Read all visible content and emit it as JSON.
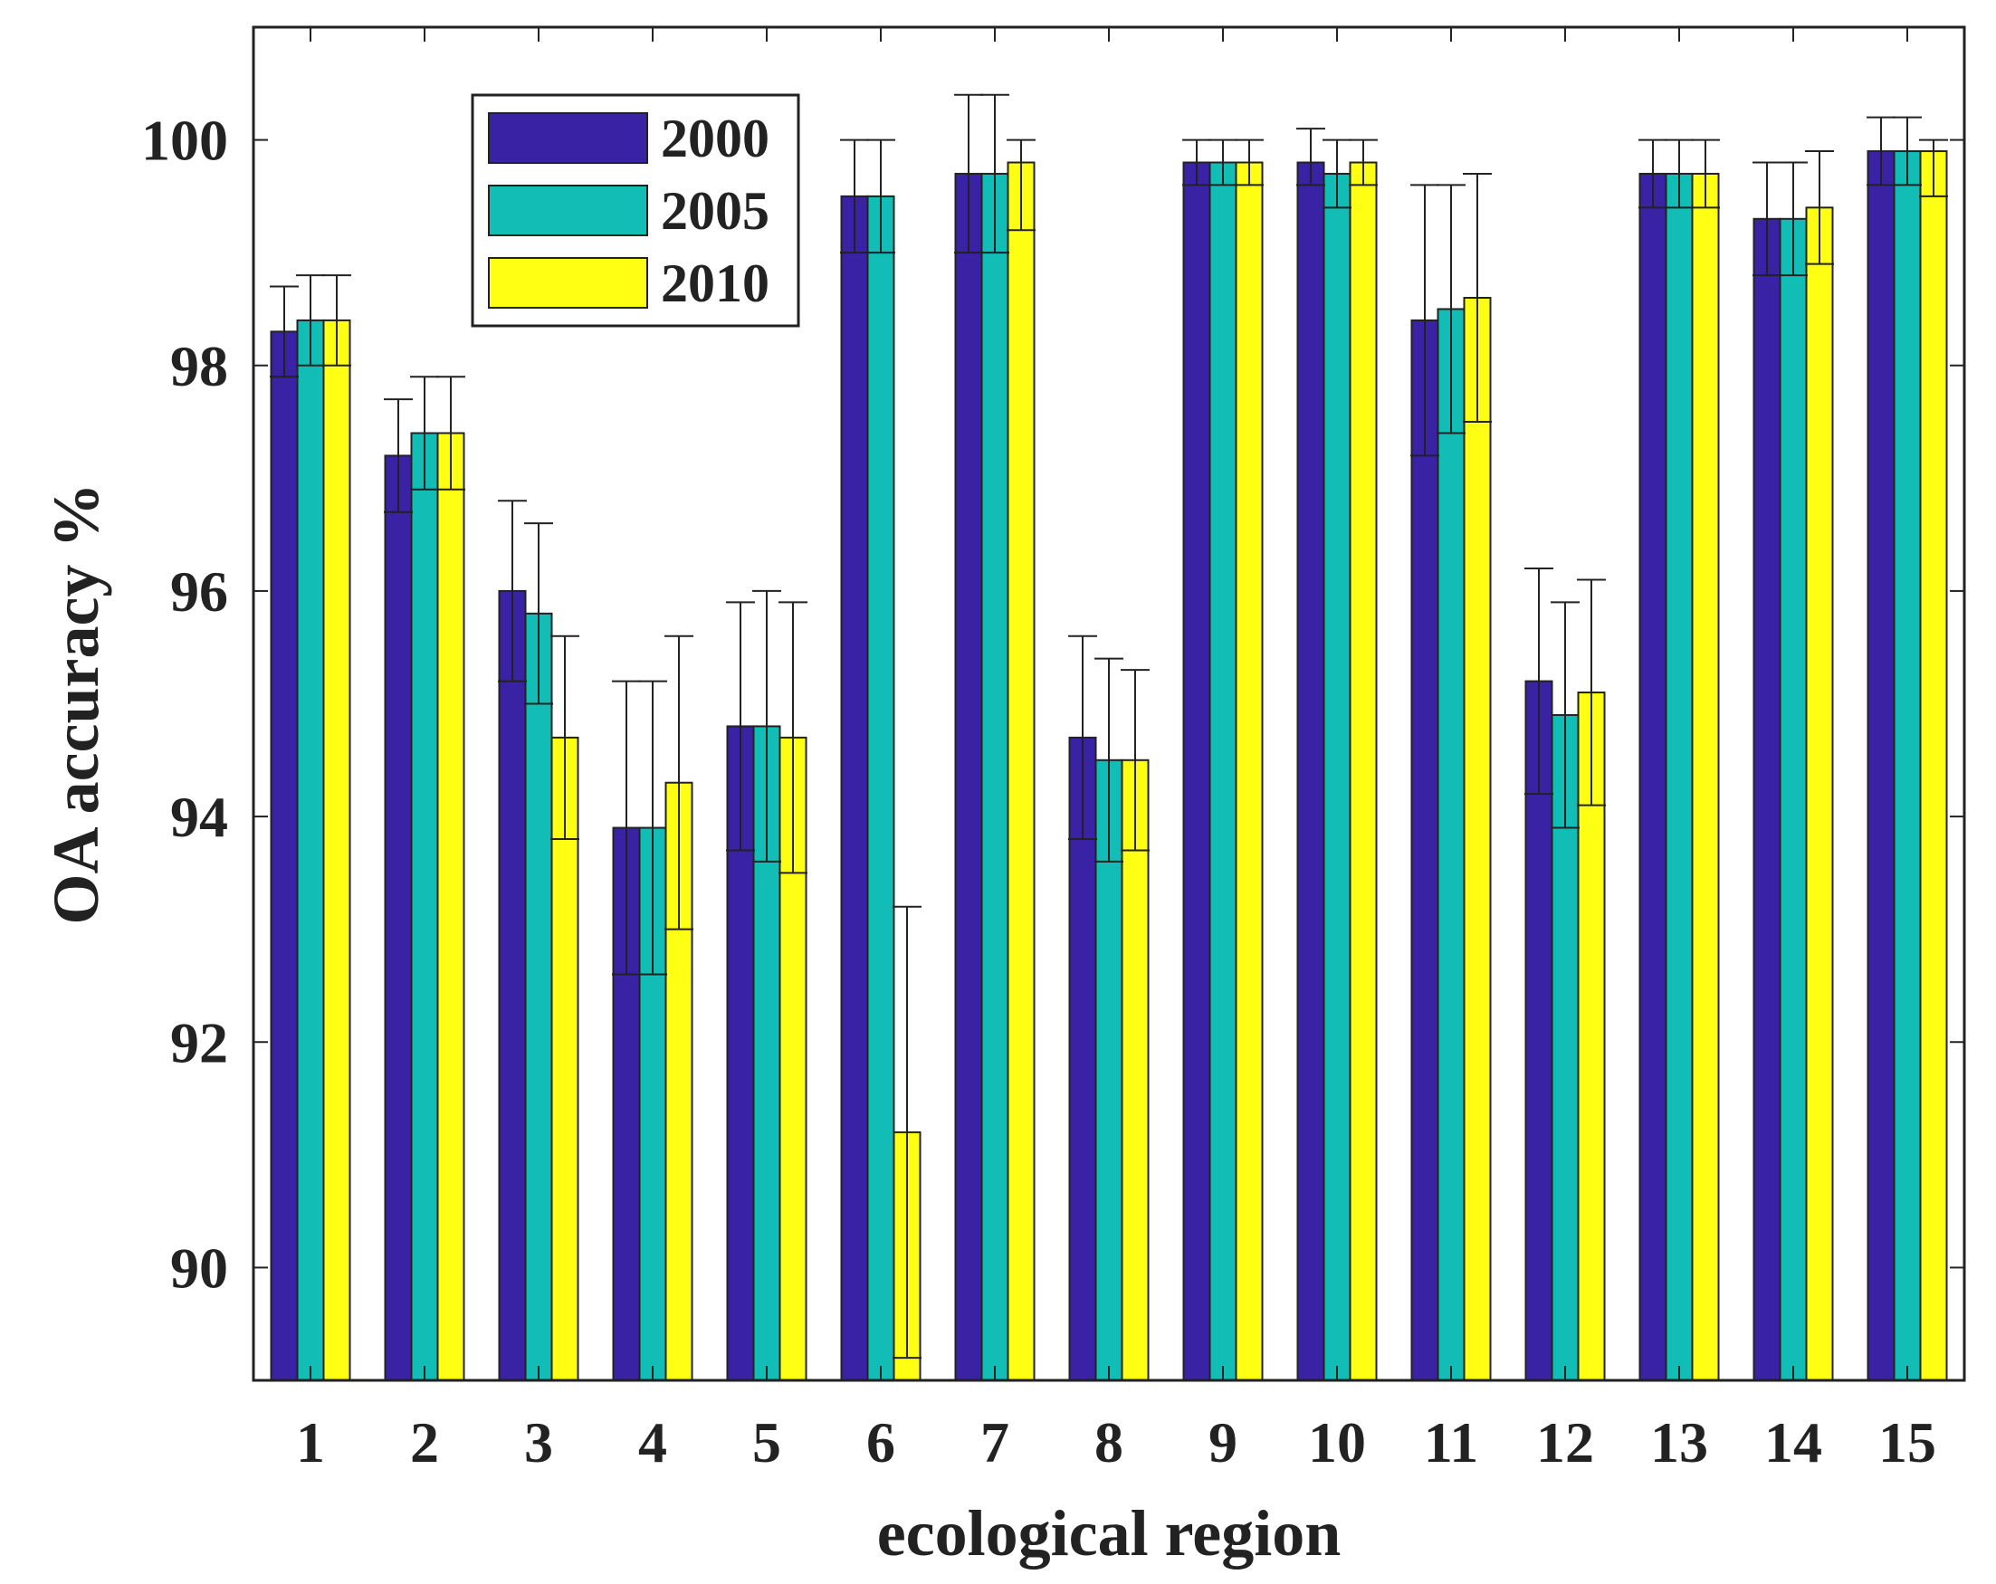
{
  "chart_data": {
    "type": "bar",
    "title": "",
    "xlabel": "ecological region",
    "ylabel": "OA accuracy %",
    "ylim": [
      89,
      101
    ],
    "yticks": [
      90,
      92,
      94,
      96,
      98,
      100
    ],
    "grid": false,
    "legend_position": "top-left",
    "categories": [
      "1",
      "2",
      "3",
      "4",
      "5",
      "6",
      "7",
      "8",
      "9",
      "10",
      "11",
      "12",
      "13",
      "14",
      "15"
    ],
    "series": [
      {
        "name": "2000",
        "color": "#3A22A5",
        "values": [
          98.3,
          97.2,
          96.0,
          93.9,
          94.8,
          99.5,
          99.7,
          94.7,
          99.8,
          99.8,
          98.4,
          95.2,
          99.7,
          99.3,
          99.9
        ],
        "err_low": [
          97.9,
          96.7,
          95.2,
          92.6,
          93.7,
          99.0,
          99.0,
          93.8,
          99.6,
          99.6,
          97.2,
          94.2,
          99.4,
          98.8,
          99.6
        ],
        "err_high": [
          98.7,
          97.7,
          96.8,
          95.2,
          95.9,
          100.0,
          100.4,
          95.6,
          100.0,
          100.1,
          99.6,
          96.2,
          100.0,
          99.8,
          100.2
        ]
      },
      {
        "name": "2005",
        "color": "#12BDB5",
        "values": [
          98.4,
          97.4,
          95.8,
          93.9,
          94.8,
          99.5,
          99.7,
          94.5,
          99.8,
          99.7,
          98.5,
          94.9,
          99.7,
          99.3,
          99.9
        ],
        "err_low": [
          98.0,
          96.9,
          95.0,
          92.6,
          93.6,
          99.0,
          99.0,
          93.6,
          99.6,
          99.4,
          97.4,
          93.9,
          99.4,
          98.8,
          99.6
        ],
        "err_high": [
          98.8,
          97.9,
          96.6,
          95.2,
          96.0,
          100.0,
          100.4,
          95.4,
          100.0,
          100.0,
          99.6,
          95.9,
          100.0,
          99.8,
          100.2
        ]
      },
      {
        "name": "2010",
        "color": "#FFFF14",
        "values": [
          98.4,
          97.4,
          94.7,
          94.3,
          94.7,
          91.2,
          99.8,
          94.5,
          99.8,
          99.8,
          98.6,
          95.1,
          99.7,
          99.4,
          99.9
        ],
        "err_low": [
          98.0,
          96.9,
          93.8,
          93.0,
          93.5,
          89.2,
          99.2,
          93.7,
          99.6,
          99.6,
          97.5,
          94.1,
          99.4,
          98.9,
          99.5
        ],
        "err_high": [
          98.8,
          97.9,
          95.6,
          95.6,
          95.9,
          93.2,
          100.0,
          95.3,
          100.0,
          100.0,
          99.7,
          96.1,
          100.0,
          99.9,
          100.0
        ]
      }
    ]
  }
}
